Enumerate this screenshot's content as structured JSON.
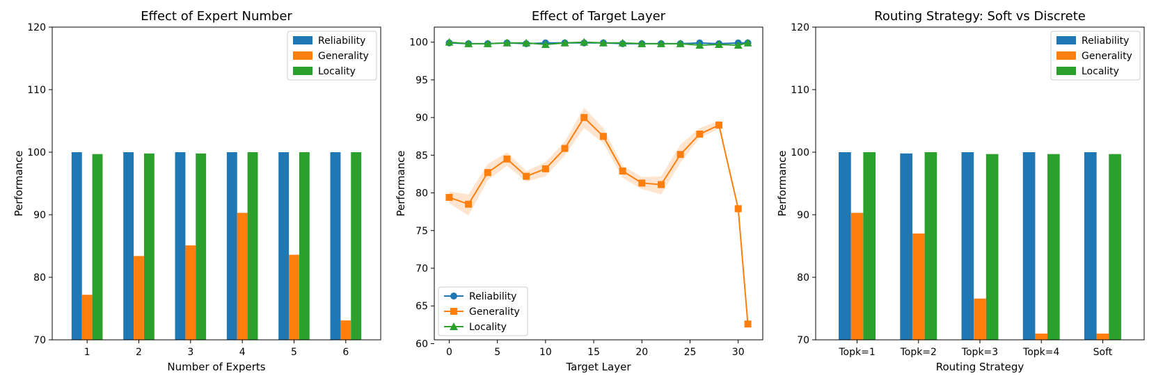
{
  "chart_data": [
    {
      "type": "bar",
      "title": "Effect of Expert Number",
      "xlabel": "Number of Experts",
      "ylabel": "Performance",
      "categories": [
        "1",
        "2",
        "3",
        "4",
        "5",
        "6"
      ],
      "ylim": [
        70,
        120
      ],
      "yticks": [
        70,
        80,
        90,
        100,
        110,
        120
      ],
      "legend_position": "top-right",
      "grid": false,
      "series": [
        {
          "name": "Reliability",
          "color": "#1f77b4",
          "values": [
            100,
            100,
            100,
            100,
            100,
            100
          ]
        },
        {
          "name": "Generality",
          "color": "#ff7f0e",
          "values": [
            77.2,
            83.4,
            85.1,
            90.3,
            83.6,
            73.1
          ]
        },
        {
          "name": "Locality",
          "color": "#2ca02c",
          "values": [
            99.7,
            99.8,
            99.8,
            100,
            100,
            100
          ]
        }
      ]
    },
    {
      "type": "line",
      "title": "Effect of Target Layer",
      "xlabel": "Target Layer",
      "ylabel": "Performance",
      "xlim": [
        -1.55,
        32.55
      ],
      "ylim": [
        60.5,
        102
      ],
      "xticks": [
        0,
        5,
        10,
        15,
        20,
        25,
        30
      ],
      "yticks": [
        60,
        65,
        70,
        75,
        80,
        85,
        90,
        95,
        100
      ],
      "legend_position": "bottom-left",
      "grid": false,
      "x": [
        0,
        2,
        4,
        6,
        8,
        10,
        12,
        14,
        16,
        18,
        20,
        22,
        24,
        26,
        28,
        30,
        31
      ],
      "series": [
        {
          "name": "Reliability",
          "color": "#1f77b4",
          "marker": "circle",
          "values": [
            99.9,
            99.8,
            99.8,
            99.9,
            99.8,
            99.9,
            99.9,
            99.9,
            99.9,
            99.8,
            99.8,
            99.8,
            99.8,
            99.9,
            99.8,
            99.9,
            99.9
          ]
        },
        {
          "name": "Generality",
          "color": "#ff7f0e",
          "marker": "square",
          "values": [
            79.4,
            78.5,
            82.7,
            84.5,
            82.2,
            83.2,
            85.9,
            90.0,
            87.5,
            82.9,
            81.3,
            81.1,
            85.1,
            87.8,
            89.0,
            77.9,
            62.6
          ],
          "band_lower": [
            78.6,
            77.0,
            81.7,
            83.6,
            81.5,
            82.2,
            85.0,
            88.6,
            86.6,
            82.0,
            80.5,
            79.8,
            84.0,
            87.3,
            88.5,
            77.9,
            62.6
          ],
          "band_upper": [
            80.2,
            79.8,
            83.8,
            85.4,
            82.9,
            84.1,
            86.8,
            91.3,
            88.6,
            83.6,
            82.1,
            82.2,
            86.4,
            88.6,
            89.6,
            77.9,
            62.6
          ]
        },
        {
          "name": "Locality",
          "color": "#2ca02c",
          "marker": "triangle",
          "values": [
            100,
            99.8,
            99.8,
            99.9,
            99.9,
            99.7,
            99.9,
            100,
            99.9,
            99.9,
            99.8,
            99.8,
            99.8,
            99.6,
            99.7,
            99.6,
            99.9
          ]
        }
      ]
    },
    {
      "type": "bar",
      "title": "Routing Strategy: Soft vs Discrete",
      "xlabel": "Routing Strategy",
      "ylabel": "Performance",
      "categories": [
        "Topk=1",
        "Topk=2",
        "Topk=3",
        "Topk=4",
        "Soft"
      ],
      "ylim": [
        70,
        120
      ],
      "yticks": [
        70,
        80,
        90,
        100,
        110,
        120
      ],
      "legend_position": "top-right",
      "grid": false,
      "series": [
        {
          "name": "Reliability",
          "color": "#1f77b4",
          "values": [
            100,
            99.8,
            100,
            100,
            100
          ]
        },
        {
          "name": "Generality",
          "color": "#ff7f0e",
          "values": [
            90.3,
            87.0,
            76.6,
            71.0,
            71.0
          ]
        },
        {
          "name": "Locality",
          "color": "#2ca02c",
          "values": [
            100,
            100,
            99.7,
            99.7,
            99.7
          ]
        }
      ]
    }
  ]
}
